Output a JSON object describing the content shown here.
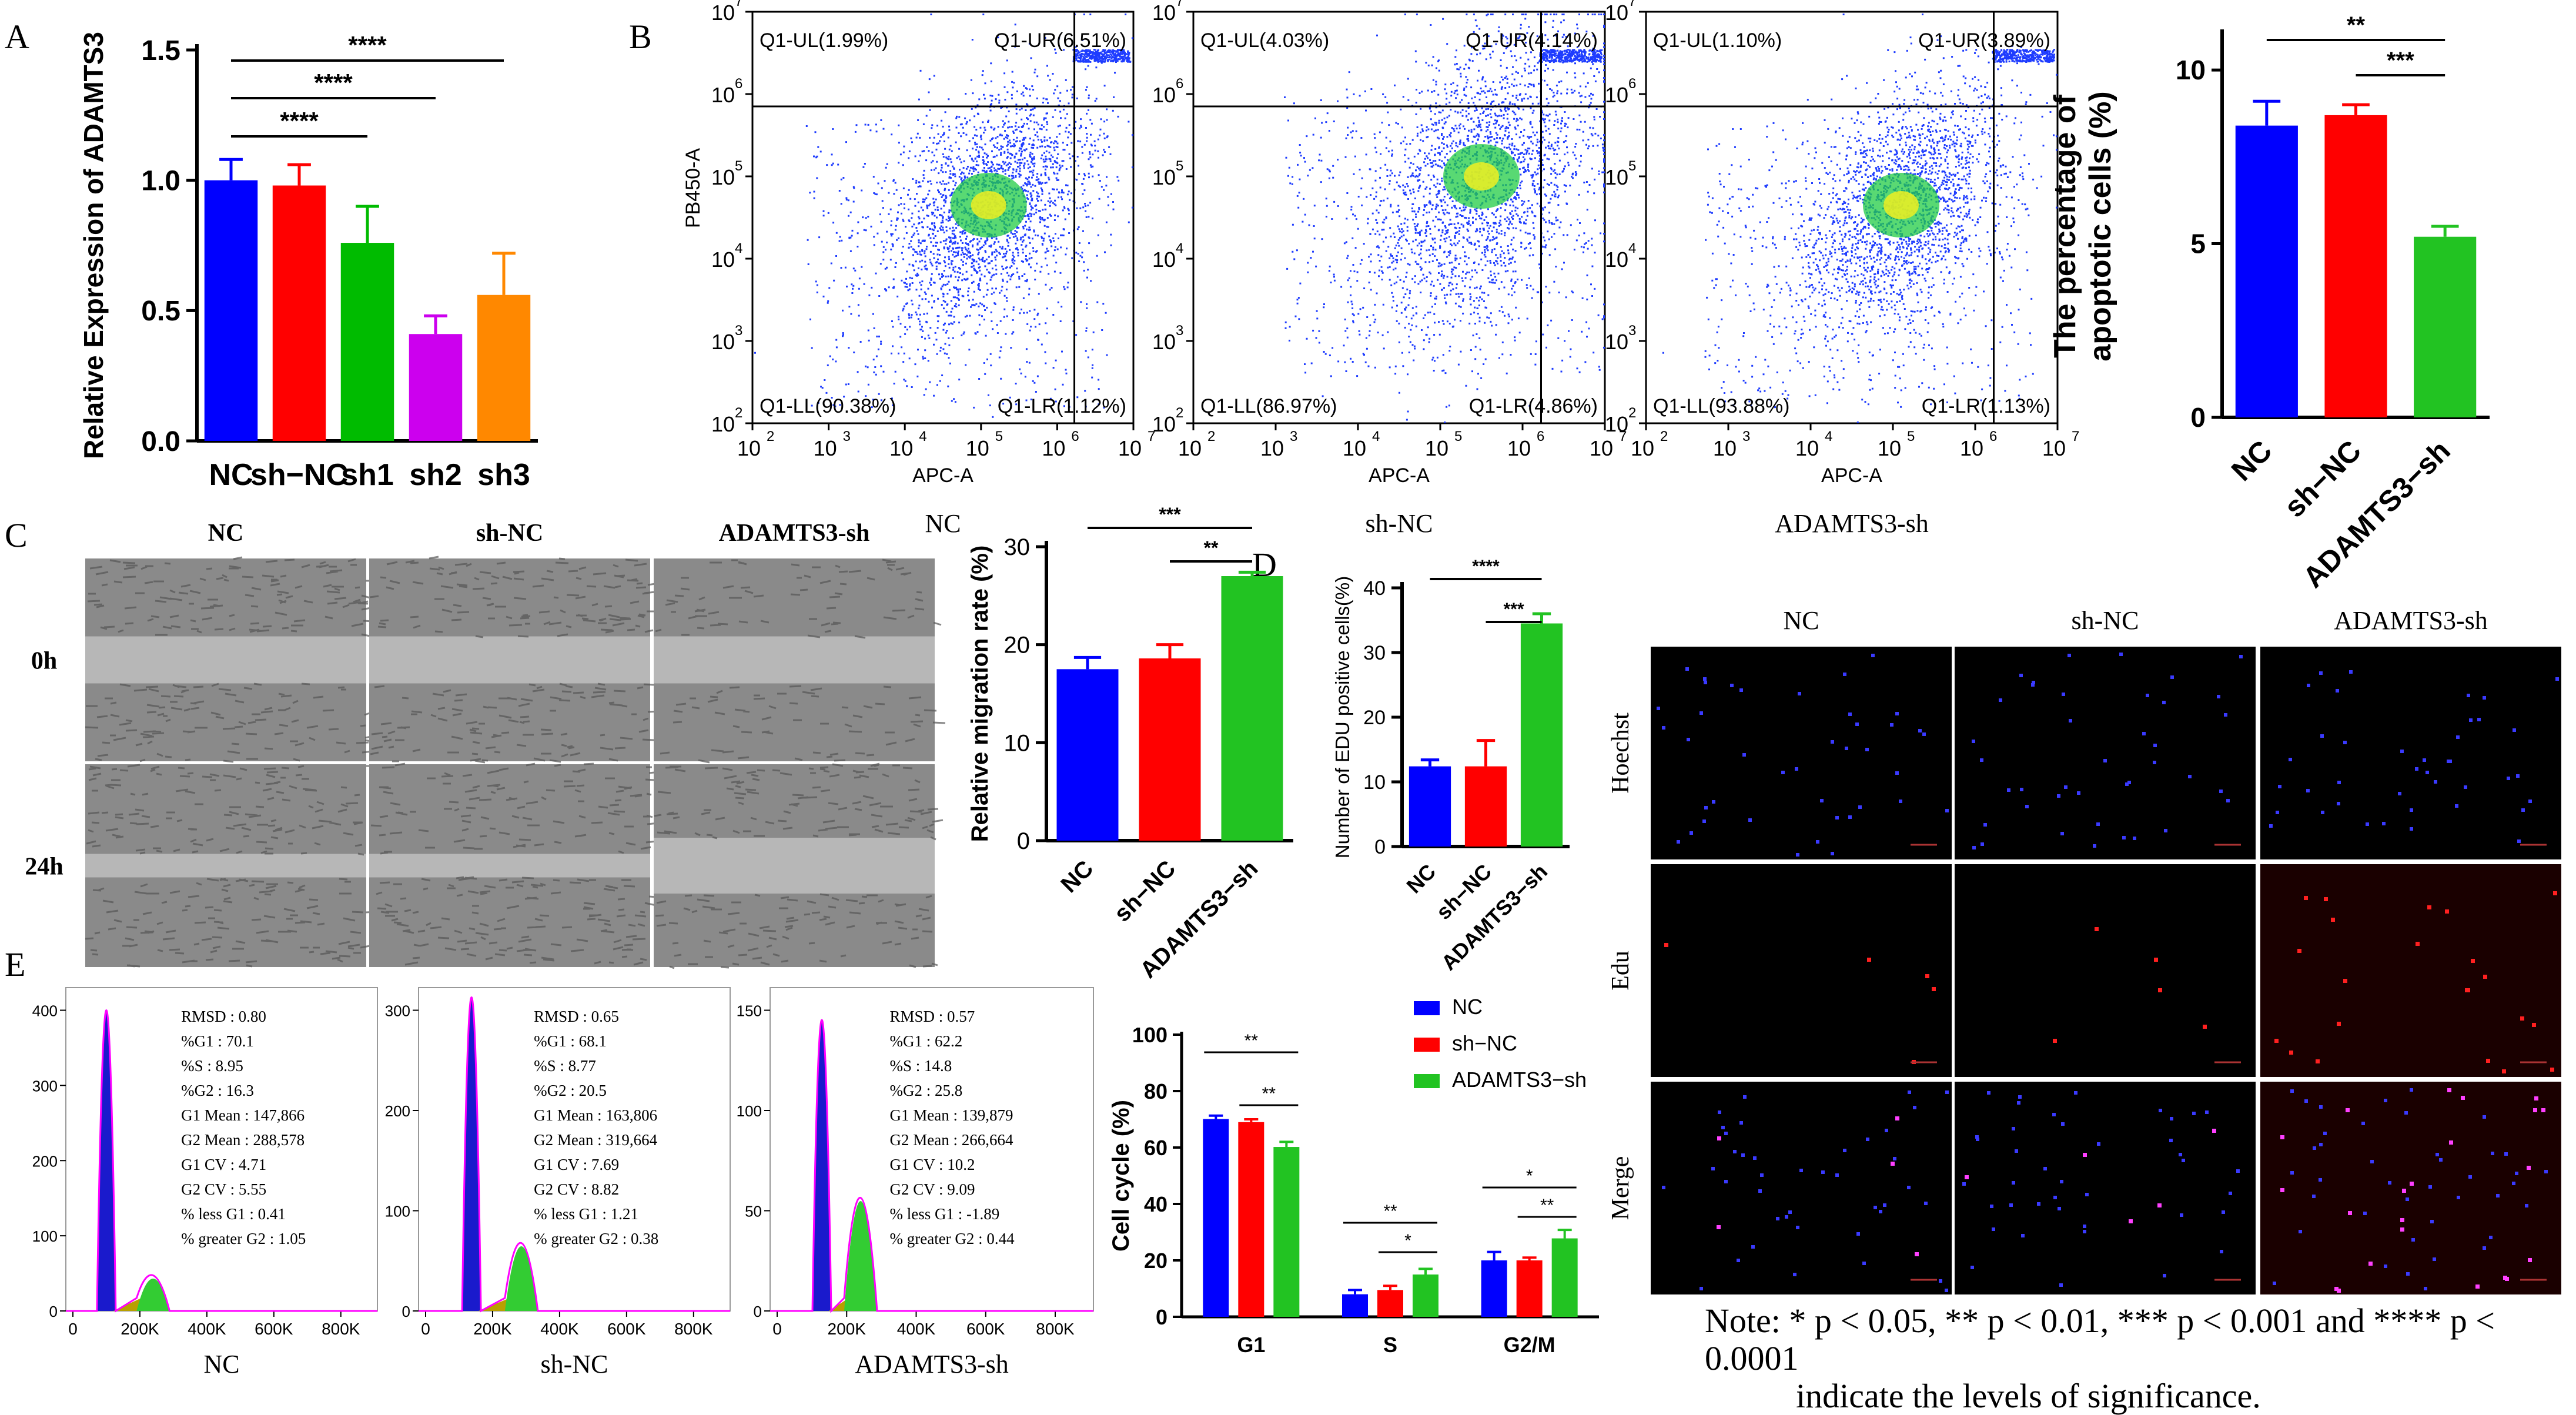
{
  "colors": {
    "nc": "#0000ff",
    "shnc": "#ff0000",
    "sh1": "#00bb00",
    "sh2": "#cc00ee",
    "sh3": "#ff8800",
    "green": "#22c322",
    "flowdot": "#1e3cff",
    "hist_fill": "#1a1acc",
    "hist_green": "#33cc33",
    "hist_line": "#ff00ff"
  },
  "panels": {
    "A": "A",
    "B": "B",
    "C": "C",
    "D": "D",
    "E": "E"
  },
  "flow": {
    "y_label": "PB450-A",
    "x_label": "APC-A",
    "ticks": [
      "10",
      "10",
      "10",
      "10",
      "10",
      "10"
    ],
    "tick_exp": [
      "2",
      "3",
      "4",
      "5",
      "6",
      "7"
    ],
    "plots": [
      {
        "name": "NC",
        "ul": "Q1-UL(1.99%)",
        "ur": "Q1-UR(6.51%)",
        "ll": "Q1-LL(90.38%)",
        "lr": "Q1-LR(1.12%)"
      },
      {
        "name": "sh-NC",
        "ul": "Q1-UL(4.03%)",
        "ur": "Q1-UR(4.14%)",
        "ll": "Q1-LL(86.97%)",
        "lr": "Q1-LR(4.86%)"
      },
      {
        "name": "ADAMTS3-sh",
        "ul": "Q1-UL(1.10%)",
        "ur": "Q1-UR(3.89%)",
        "ll": "Q1-LL(93.88%)",
        "lr": "Q1-LR(1.13%)"
      }
    ]
  },
  "wound": {
    "columns": [
      "NC",
      "sh-NC",
      "ADAMTS3-sh"
    ],
    "rows": [
      "0h",
      "24h"
    ]
  },
  "edu_images": {
    "columns": [
      "NC",
      "sh-NC",
      "ADAMTS3-sh"
    ],
    "rows": [
      "Hoechst",
      "Edu",
      "Merge"
    ]
  },
  "cell_cycle_hist": [
    {
      "name": "NC",
      "ymax": "400",
      "yticks": [
        "0",
        "100",
        "200",
        "300",
        "400"
      ],
      "stats": [
        "RMSD : 0.80",
        "%G1 : 70.1",
        "%S : 8.95",
        "%G2 : 16.3",
        "G1 Mean : 147,866",
        "G2 Mean : 288,578",
        "G1 CV : 4.71",
        "G2 CV : 5.55",
        "% less G1 : 0.41",
        "% greater G2 : 1.05"
      ]
    },
    {
      "name": "sh-NC",
      "ymax": "300",
      "yticks": [
        "0",
        "100",
        "200",
        "300"
      ],
      "stats": [
        "RMSD : 0.65",
        "%G1 : 68.1",
        "%S : 8.77",
        "%G2 : 20.5",
        "G1 Mean : 163,806",
        "G2 Mean : 319,664",
        "G1 CV : 7.69",
        "G2 CV : 8.82",
        "% less G1 : 1.21",
        "% greater G2 : 0.38"
      ]
    },
    {
      "name": "ADAMTS3-sh",
      "ymax": "150",
      "yticks": [
        "0",
        "50",
        "100",
        "150"
      ],
      "stats": [
        "RMSD : 0.57",
        "%G1 : 62.2",
        "%S : 14.8",
        "%G2 : 25.8",
        "G1 Mean : 139,879",
        "G2 Mean : 266,664",
        "G1 CV : 10.2",
        "G2 CV : 9.09",
        "% less G1 : -1.89",
        "% greater G2 : 0.44"
      ]
    }
  ],
  "hist_xticks": [
    "0",
    "200K",
    "400K",
    "600K",
    "800K"
  ],
  "note": {
    "line1": "Note: * p < 0.05, ** p < 0.01, *** p < 0.001 and **** p < 0.0001",
    "line2": "indicate the levels of significance."
  },
  "chart_data": [
    {
      "id": "A",
      "type": "bar",
      "title": "",
      "ylabel": "Relative Expression of ADAMTS3",
      "xlabel": "",
      "categories": [
        "NC",
        "sh−NC",
        "sh1",
        "sh2",
        "sh3"
      ],
      "values": [
        1.0,
        0.98,
        0.76,
        0.41,
        0.56
      ],
      "errors": [
        0.08,
        0.08,
        0.14,
        0.07,
        0.16
      ],
      "ylim": [
        0,
        1.5
      ],
      "yticks": [
        "0.0",
        "0.5",
        "1.0",
        "1.5"
      ],
      "significance": [
        {
          "from": 0,
          "to": 2,
          "label": "****"
        },
        {
          "from": 0,
          "to": 3,
          "label": "****"
        },
        {
          "from": 0,
          "to": 4,
          "label": "****"
        }
      ]
    },
    {
      "id": "B",
      "type": "bar",
      "title": "",
      "ylabel": "The percentage of apoptotic cells (%)",
      "xlabel": "",
      "categories": [
        "NC",
        "sh−NC",
        "ADAMTS3−sh"
      ],
      "values": [
        8.4,
        8.7,
        5.2
      ],
      "errors": [
        0.7,
        0.3,
        0.3
      ],
      "ylim": [
        0,
        11
      ],
      "yticks": [
        "0",
        "5",
        "10"
      ],
      "significance": [
        {
          "from": 0,
          "to": 2,
          "label": "**"
        },
        {
          "from": 1,
          "to": 2,
          "label": "***"
        }
      ]
    },
    {
      "id": "C",
      "type": "bar",
      "title": "",
      "ylabel": "Relative migration rate (%)",
      "xlabel": "",
      "categories": [
        "NC",
        "sh−NC",
        "ADAMTS3−sh"
      ],
      "values": [
        17.5,
        18.6,
        27.0
      ],
      "errors": [
        1.2,
        1.4,
        0.4
      ],
      "ylim": [
        0,
        30
      ],
      "yticks": [
        "0",
        "10",
        "20",
        "30"
      ],
      "significance": [
        {
          "from": 0,
          "to": 2,
          "label": "***"
        },
        {
          "from": 1,
          "to": 2,
          "label": "**"
        }
      ]
    },
    {
      "id": "D",
      "type": "bar",
      "title": "",
      "ylabel": "Number of EDU positive cells(%)",
      "xlabel": "",
      "categories": [
        "NC",
        "sh−NC",
        "ADAMTS3−sh"
      ],
      "values": [
        12.4,
        12.4,
        34.5
      ],
      "errors": [
        1.0,
        4.0,
        1.5
      ],
      "ylim": [
        0,
        40
      ],
      "yticks": [
        "0",
        "10",
        "20",
        "30",
        "40"
      ],
      "significance": [
        {
          "from": 0,
          "to": 2,
          "label": "****"
        },
        {
          "from": 1,
          "to": 2,
          "label": "***"
        }
      ]
    },
    {
      "id": "E",
      "type": "bar",
      "title": "",
      "ylabel": "Cell cycle  (%)",
      "xlabel": "",
      "categories": [
        "G1",
        "S",
        "G2/M"
      ],
      "series": [
        {
          "name": "NC",
          "values": [
            70.1,
            8.0,
            20.0
          ],
          "errors": [
            1.2,
            1.5,
            3.0
          ]
        },
        {
          "name": "sh−NC",
          "values": [
            69.0,
            9.5,
            20.0
          ],
          "errors": [
            1.0,
            1.5,
            1.0
          ]
        },
        {
          "name": "ADAMTS3−sh",
          "values": [
            60.2,
            15.0,
            27.8
          ],
          "errors": [
            1.8,
            2.0,
            3.0
          ]
        }
      ],
      "ylim": [
        0,
        100
      ],
      "yticks": [
        "0",
        "20",
        "40",
        "60",
        "80",
        "100"
      ],
      "legend": "top-right",
      "significance": [
        {
          "group": 0,
          "from": 0,
          "to": 2,
          "label": "**"
        },
        {
          "group": 0,
          "from": 1,
          "to": 2,
          "label": "**"
        },
        {
          "group": 1,
          "from": 0,
          "to": 2,
          "label": "**"
        },
        {
          "group": 1,
          "from": 1,
          "to": 2,
          "label": "*"
        },
        {
          "group": 2,
          "from": 0,
          "to": 2,
          "label": "*"
        },
        {
          "group": 2,
          "from": 1,
          "to": 2,
          "label": "**"
        }
      ]
    }
  ]
}
